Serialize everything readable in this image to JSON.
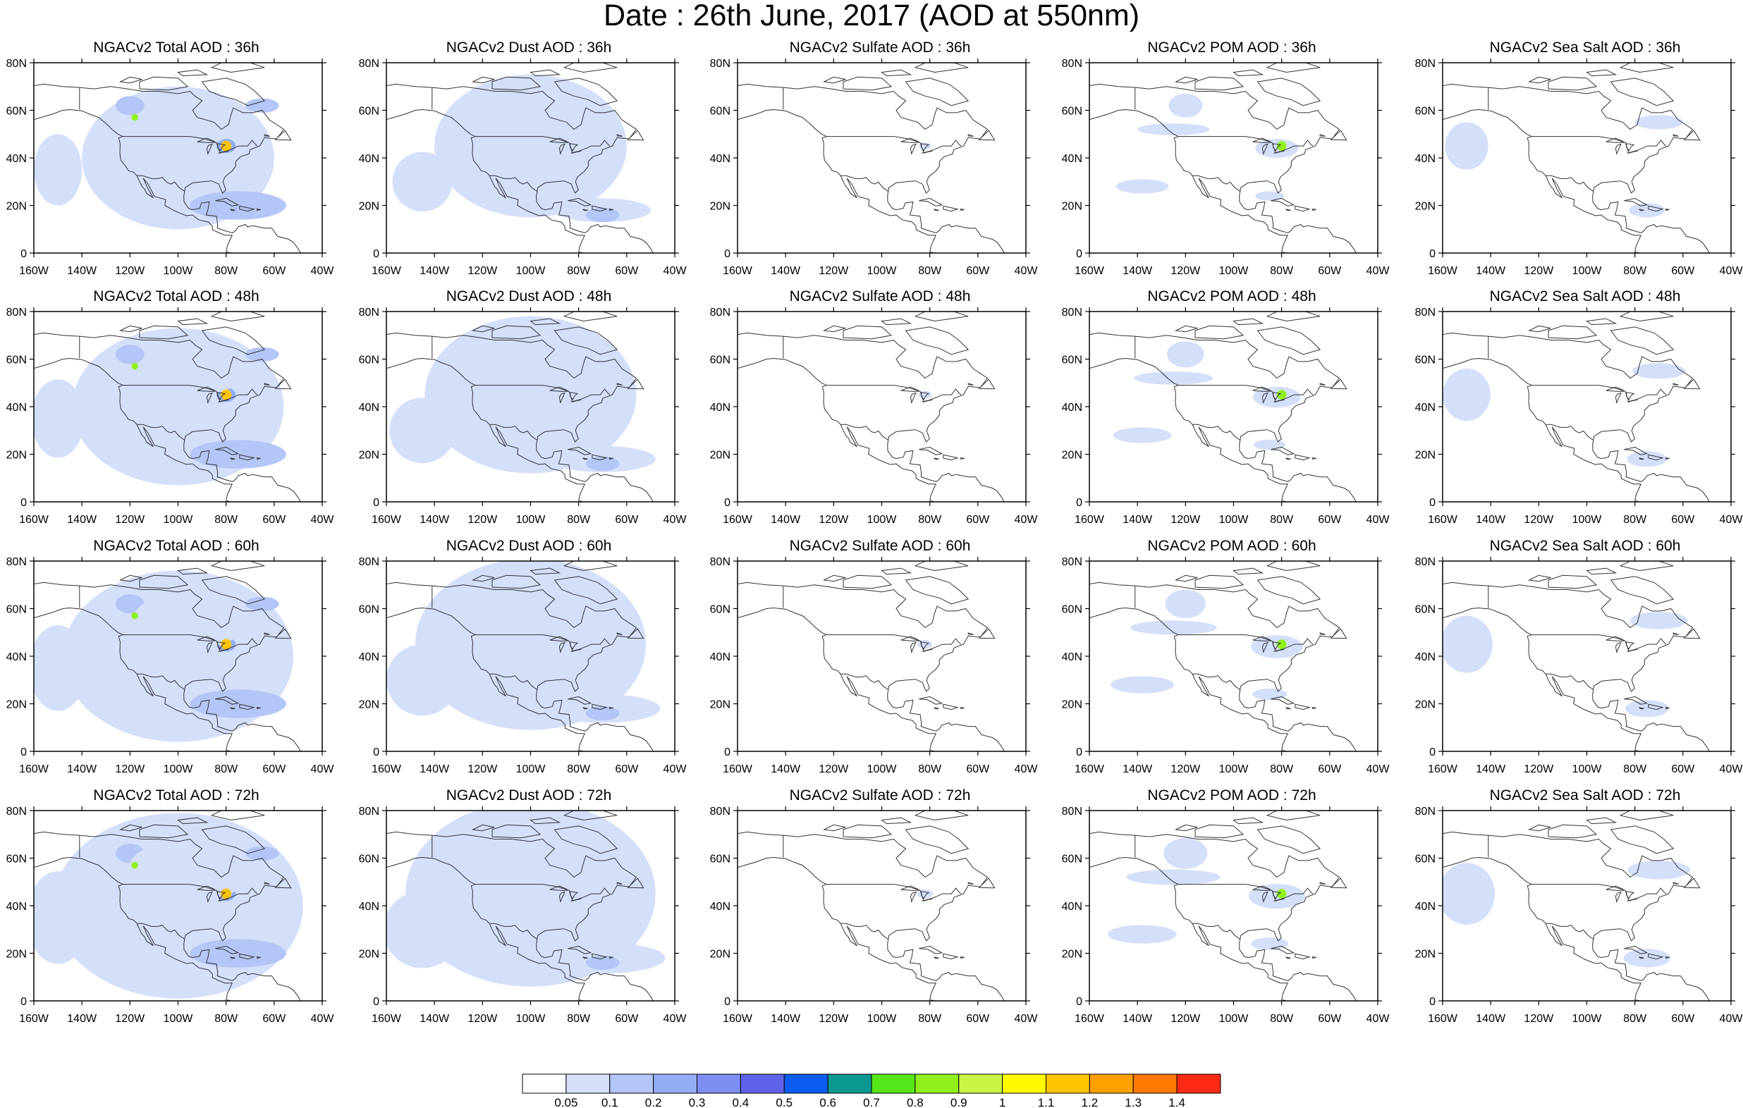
{
  "title": "Date : 26th June, 2017 (AOD at 550nm)",
  "axis": {
    "lat_ticks": [
      "80N",
      "60N",
      "40N",
      "20N",
      "0"
    ],
    "lon_ticks": [
      "160W",
      "140W",
      "120W",
      "100W",
      "80W",
      "60W",
      "40W"
    ],
    "lat_range": [
      0,
      80
    ],
    "lon_range": [
      -160,
      -40
    ]
  },
  "panels": [
    {
      "title": "NGACv2 Total AOD : 36h",
      "species": "total",
      "hour": 36
    },
    {
      "title": "NGACv2 Dust AOD : 36h",
      "species": "dust",
      "hour": 36
    },
    {
      "title": "NGACv2 Sulfate AOD : 36h",
      "species": "sulfate",
      "hour": 36
    },
    {
      "title": "NGACv2 POM AOD : 36h",
      "species": "pom",
      "hour": 36
    },
    {
      "title": "NGACv2 Sea Salt AOD : 36h",
      "species": "seasalt",
      "hour": 36
    },
    {
      "title": "NGACv2 Total AOD : 48h",
      "species": "total",
      "hour": 48
    },
    {
      "title": "NGACv2 Dust AOD : 48h",
      "species": "dust",
      "hour": 48
    },
    {
      "title": "NGACv2 Sulfate AOD : 48h",
      "species": "sulfate",
      "hour": 48
    },
    {
      "title": "NGACv2 POM AOD : 48h",
      "species": "pom",
      "hour": 48
    },
    {
      "title": "NGACv2 Sea Salt AOD : 48h",
      "species": "seasalt",
      "hour": 48
    },
    {
      "title": "NGACv2 Total AOD : 60h",
      "species": "total",
      "hour": 60
    },
    {
      "title": "NGACv2 Dust AOD : 60h",
      "species": "dust",
      "hour": 60
    },
    {
      "title": "NGACv2 Sulfate AOD : 60h",
      "species": "sulfate",
      "hour": 60
    },
    {
      "title": "NGACv2 POM AOD : 60h",
      "species": "pom",
      "hour": 60
    },
    {
      "title": "NGACv2 Sea Salt AOD : 60h",
      "species": "seasalt",
      "hour": 60
    },
    {
      "title": "NGACv2 Total AOD : 72h",
      "species": "total",
      "hour": 72
    },
    {
      "title": "NGACv2 Dust AOD : 72h",
      "species": "dust",
      "hour": 72
    },
    {
      "title": "NGACv2 Sulfate AOD : 72h",
      "species": "sulfate",
      "hour": 72
    },
    {
      "title": "NGACv2 POM AOD : 72h",
      "species": "pom",
      "hour": 72
    },
    {
      "title": "NGACv2 Sea Salt  AOD : 72h",
      "species": "seasalt",
      "hour": 72
    }
  ],
  "colorbar": {
    "labels": [
      "0.05",
      "0.1",
      "0.2",
      "0.3",
      "0.4",
      "0.5",
      "0.6",
      "0.7",
      "0.8",
      "0.9",
      "1",
      "1.1",
      "1.2",
      "1.3",
      "1.4"
    ],
    "colors": [
      "#ffffff",
      "#d4dffa",
      "#b4c6f7",
      "#94aef5",
      "#7e8ef2",
      "#5f63ea",
      "#0b5cf0",
      "#0b9890",
      "#55e61a",
      "#8ff01c",
      "#c9f545",
      "#fffa00",
      "#ffc400",
      "#ffa000",
      "#ff7a00",
      "#ff2a14"
    ]
  }
}
